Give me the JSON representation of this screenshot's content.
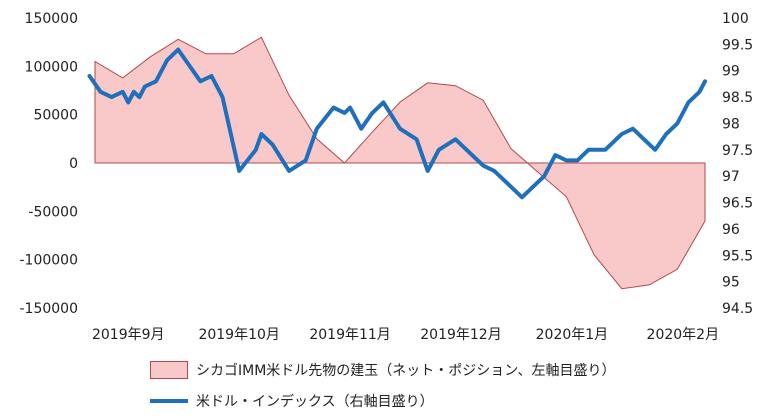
{
  "chart_data": {
    "type": "area",
    "x_labels": [
      "2019年9月",
      "2019年10月",
      "2019年11月",
      "2019年12月",
      "2020年1月",
      "2020年2月"
    ],
    "left_axis": {
      "ticks": [
        -150000,
        -100000,
        -50000,
        0,
        50000,
        100000,
        150000
      ],
      "ylim": [
        -150000,
        150000
      ]
    },
    "right_axis": {
      "ticks": [
        94.5,
        95,
        95.5,
        96,
        96.5,
        97,
        97.5,
        98,
        98.5,
        99,
        99.5,
        100
      ],
      "ylim": [
        94.5,
        100
      ]
    },
    "series": [
      {
        "name": "シカゴIMM米ドル先物の建玉（ネット・ポジション、左軸目盛り）",
        "kind": "area",
        "axis": "left",
        "color": "#f9c8c8",
        "edge_color": "#b14a4a",
        "x": [
          0.0,
          0.25,
          0.5,
          0.75,
          1.0,
          1.25,
          1.5,
          1.75,
          2.0,
          2.25,
          2.5,
          2.75,
          3.0,
          3.25,
          3.5,
          3.75,
          4.0,
          4.25,
          4.5,
          4.75,
          5.0,
          5.25,
          5.5
        ],
        "values": [
          105000,
          88000,
          110000,
          128000,
          113000,
          113000,
          130000,
          70000,
          25000,
          0,
          32000,
          63000,
          83000,
          80000,
          65000,
          15000,
          -10000,
          -35000,
          -95000,
          -130000,
          -126000,
          -110000,
          -60000
        ]
      },
      {
        "name": "米ドル・インデックス（右軸目盛り）",
        "kind": "line",
        "axis": "right",
        "color": "#1f6fbd",
        "x": [
          -0.05,
          0.05,
          0.15,
          0.25,
          0.3,
          0.35,
          0.4,
          0.45,
          0.55,
          0.65,
          0.75,
          0.85,
          0.95,
          1.05,
          1.15,
          1.3,
          1.45,
          1.5,
          1.6,
          1.75,
          1.9,
          2.0,
          2.15,
          2.25,
          2.3,
          2.4,
          2.5,
          2.6,
          2.75,
          2.9,
          3.0,
          3.1,
          3.25,
          3.4,
          3.5,
          3.6,
          3.75,
          3.85,
          3.95,
          4.05,
          4.15,
          4.25,
          4.35,
          4.45,
          4.6,
          4.75,
          4.85,
          4.95,
          5.05,
          5.15,
          5.25,
          5.35,
          5.45,
          5.5
        ],
        "values": [
          98.9,
          98.6,
          98.5,
          98.6,
          98.4,
          98.6,
          98.5,
          98.7,
          98.8,
          99.2,
          99.4,
          99.1,
          98.8,
          98.9,
          98.5,
          97.1,
          97.5,
          97.8,
          97.6,
          97.1,
          97.3,
          97.9,
          98.3,
          98.2,
          98.3,
          97.9,
          98.2,
          98.4,
          97.9,
          97.7,
          97.1,
          97.5,
          97.7,
          97.4,
          97.2,
          97.1,
          96.8,
          96.6,
          96.8,
          97.0,
          97.4,
          97.3,
          97.3,
          97.5,
          97.5,
          97.8,
          97.9,
          97.7,
          97.5,
          97.8,
          98.0,
          98.4,
          98.6,
          98.8
        ]
      }
    ],
    "grid": false,
    "legend_position": "bottom"
  }
}
